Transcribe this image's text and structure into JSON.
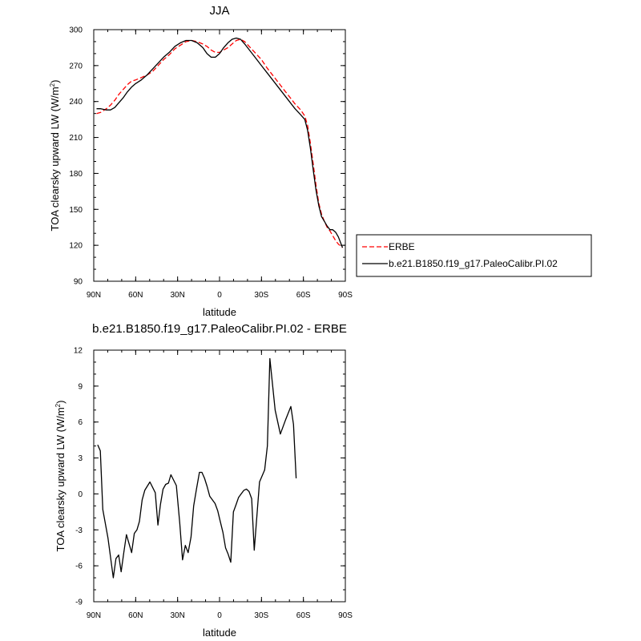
{
  "chart_data": [
    {
      "type": "line",
      "title": "JJA",
      "xlabel": "latitude",
      "ylabel": "TOA clearsky upward LW (W/m",
      "ylabel_sup": "2",
      "ylabel_close": ")",
      "xlim": [
        90,
        -90
      ],
      "ylim": [
        90,
        300
      ],
      "x_tick_values": [
        90,
        60,
        30,
        0,
        -30,
        -60,
        -90
      ],
      "x_tick_labels": [
        "90N",
        "60N",
        "30N",
        "0",
        "30S",
        "60S",
        "90S"
      ],
      "y_tick_values": [
        90,
        120,
        150,
        180,
        210,
        240,
        270,
        300
      ],
      "y_tick_labels": [
        "90",
        "120",
        "150",
        "180",
        "210",
        "240",
        "270",
        "300"
      ],
      "legend": "right-bottom outside",
      "series": [
        {
          "name": "ERBE",
          "color": "#ff0000",
          "style": "dashed",
          "x": [
            88,
            85,
            81,
            78,
            75,
            72,
            69,
            66,
            63,
            60,
            56,
            52,
            48,
            44,
            40,
            36,
            32,
            28,
            24,
            20,
            16,
            12,
            9,
            6,
            3,
            0,
            -3,
            -6,
            -9,
            -12,
            -15,
            -18,
            -22,
            -26,
            -30,
            -34,
            -38,
            -42,
            -46,
            -50,
            -54,
            -58,
            -61,
            -63,
            -65,
            -67,
            -69,
            -71,
            -73,
            -75,
            -77,
            -79,
            -81,
            -83,
            -85,
            -88
          ],
          "y": [
            230,
            231,
            234,
            237,
            241,
            246,
            250,
            254,
            257,
            258,
            260,
            262,
            265,
            270,
            275,
            279,
            284,
            287,
            290,
            291,
            290,
            288,
            286,
            283,
            281,
            281,
            283,
            285,
            288,
            291,
            292,
            290,
            285,
            280,
            275,
            268,
            262,
            256,
            250,
            244,
            238,
            233,
            228,
            220,
            205,
            188,
            170,
            155,
            146,
            140,
            135,
            132,
            128,
            124,
            121,
            118
          ]
        },
        {
          "name": "b.e21.B1850.f19_g17.PaleoCalibr.PI.02",
          "color": "#000000",
          "style": "solid",
          "x": [
            88,
            85,
            81,
            78,
            75,
            72,
            69,
            66,
            63,
            60,
            56,
            52,
            48,
            44,
            40,
            36,
            32,
            28,
            24,
            20,
            16,
            12,
            9,
            6,
            3,
            0,
            -3,
            -6,
            -9,
            -12,
            -15,
            -18,
            -22,
            -26,
            -30,
            -34,
            -38,
            -42,
            -46,
            -50,
            -54,
            -58,
            -61,
            -63,
            -65,
            -67,
            -69,
            -71,
            -73,
            -75,
            -77,
            -79,
            -81,
            -83,
            -85,
            -88
          ],
          "y": [
            234,
            234,
            233,
            233,
            235,
            239,
            243,
            248,
            252,
            255,
            258,
            262,
            267,
            272,
            277,
            281,
            286,
            289,
            291,
            291,
            289,
            285,
            280,
            277,
            277,
            280,
            285,
            289,
            292,
            293,
            292,
            288,
            282,
            276,
            270,
            264,
            258,
            252,
            246,
            240,
            234,
            229,
            225,
            216,
            201,
            183,
            166,
            153,
            144,
            140,
            136,
            133,
            133,
            131,
            127,
            118
          ]
        }
      ]
    },
    {
      "type": "line",
      "title": "b.e21.B1850.f19_g17.PaleoCalibr.PI.02 - ERBE",
      "xlabel": "latitude",
      "ylabel": "TOA clearsky upward LW (W/m",
      "ylabel_sup": "2",
      "ylabel_close": ")",
      "xlim": [
        90,
        -90
      ],
      "ylim": [
        -9,
        12
      ],
      "x_tick_values": [
        90,
        60,
        30,
        0,
        -30,
        -60,
        -90
      ],
      "x_tick_labels": [
        "90N",
        "60N",
        "30N",
        "0",
        "30S",
        "60S",
        "90S"
      ],
      "y_tick_values": [
        -9,
        -6,
        -3,
        0,
        3,
        6,
        9,
        12
      ],
      "y_tick_labels": [
        "-9",
        "-6",
        "-3",
        "0",
        "3",
        "6",
        "9",
        "12"
      ],
      "series": [
        {
          "name": "",
          "color": "#000000",
          "style": "solid",
          "x": [
            87.2,
            85.3,
            83.5,
            79.8,
            76.0,
            74.1,
            72.2,
            70.4,
            68.5,
            66.6,
            62.9,
            61.0,
            59.1,
            57.3,
            55.4,
            53.5,
            49.8,
            46.0,
            44.1,
            42.3,
            40.4,
            38.5,
            36.6,
            34.8,
            30.9,
            28.5,
            26.5,
            24.5,
            22.5,
            20.4,
            18.5,
            16.5,
            14.4,
            12.6,
            10.7,
            8.8,
            7.0,
            5.1,
            3.2,
            1.3,
            -0.5,
            -2.4,
            -4.3,
            -6.1,
            -8.0,
            -9.9,
            -11.8,
            -13.6,
            -15.5,
            -17.4,
            -19.2,
            -21.1,
            -23.0,
            -24.8,
            -28.6,
            -32.3,
            -34.2,
            -36.0,
            -39.8,
            -43.5,
            -47.3,
            -51.0,
            -52.9,
            -54.8,
            -56.7,
            -58.5,
            -60.4,
            -62.3,
            -64.1,
            -66.0,
            -67.9,
            -69.8,
            -71.6,
            -73.5,
            -75.4,
            -77.3,
            -80.0,
            -82.2,
            -84.4,
            -86.5,
            -88.6
          ],
          "y": [
            4.1,
            3.6,
            -1.3,
            -3.7,
            -7.0,
            -5.4,
            -5.1,
            -6.5,
            -4.9,
            -3.4,
            -4.9,
            -3.3,
            -3.0,
            -2.3,
            -0.5,
            0.3,
            1.0,
            0.1,
            -2.6,
            -0.9,
            0.4,
            0.8,
            0.9,
            1.6,
            0.7,
            -2.4,
            -5.5,
            -4.3,
            -4.9,
            -3.6,
            -1.0,
            0.4,
            1.8,
            1.8,
            1.3,
            0.6,
            -0.2,
            -0.5,
            -0.8,
            -1.4,
            -2.3,
            -3.2,
            -4.5,
            -5.0,
            -5.7,
            -1.5,
            -0.9,
            -0.3,
            0.0,
            0.3,
            0.4,
            0.2,
            -0.4,
            -4.7,
            1.0,
            2.0,
            4.0,
            11.3,
            7.0,
            5.0,
            6.2,
            7.3,
            5.8,
            1.3,
            null,
            null,
            null,
            null,
            null,
            null,
            null,
            null,
            null,
            null,
            null,
            null,
            null,
            null,
            null,
            null,
            null
          ]
        }
      ]
    }
  ]
}
